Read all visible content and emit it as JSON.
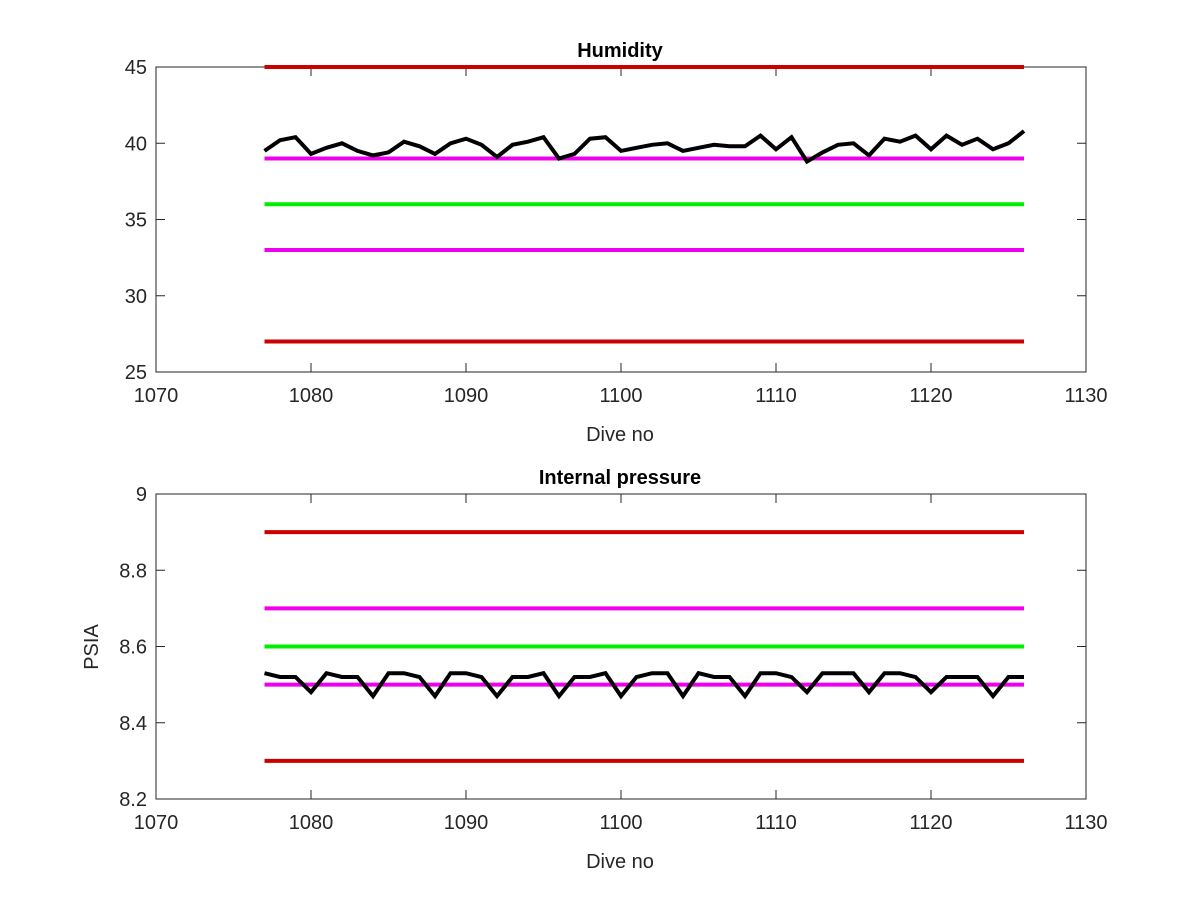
{
  "chart_data": [
    {
      "type": "line",
      "title": "Humidity",
      "xlabel": "Dive no",
      "ylabel": "",
      "xlim": [
        1070,
        1130
      ],
      "ylim": [
        25,
        45
      ],
      "xticks": [
        1070,
        1080,
        1090,
        1100,
        1110,
        1120,
        1130
      ],
      "yticks": [
        25,
        30,
        35,
        40,
        45
      ],
      "grid": false,
      "series": [
        {
          "color": "#000000",
          "x": [
            1077,
            1078,
            1079,
            1080,
            1081,
            1082,
            1083,
            1084,
            1085,
            1086,
            1087,
            1088,
            1089,
            1090,
            1091,
            1092,
            1093,
            1094,
            1095,
            1096,
            1097,
            1098,
            1099,
            1100,
            1101,
            1102,
            1103,
            1104,
            1105,
            1106,
            1107,
            1108,
            1109,
            1110,
            1111,
            1112,
            1113,
            1114,
            1115,
            1116,
            1117,
            1118,
            1119,
            1120,
            1121,
            1122,
            1123,
            1124,
            1125,
            1126
          ],
          "y": [
            39.5,
            40.2,
            40.4,
            39.3,
            39.7,
            40.0,
            39.5,
            39.2,
            39.4,
            40.1,
            39.8,
            39.3,
            40.0,
            40.3,
            39.9,
            39.1,
            39.9,
            40.1,
            40.4,
            39.0,
            39.3,
            40.3,
            40.4,
            39.5,
            39.7,
            39.9,
            40.0,
            39.5,
            39.7,
            39.9,
            39.8,
            39.8,
            40.5,
            39.6,
            40.4,
            38.8,
            39.4,
            39.9,
            40.0,
            39.2,
            40.3,
            40.1,
            40.5,
            39.6,
            40.5,
            39.9,
            40.3,
            39.6,
            40.0,
            40.8
          ]
        },
        {
          "color": "#cc0000",
          "x": [
            1077,
            1126
          ],
          "y": [
            45,
            45
          ]
        },
        {
          "color": "#ee00ee",
          "x": [
            1077,
            1126
          ],
          "y": [
            39,
            39
          ]
        },
        {
          "color": "#00ee00",
          "x": [
            1077,
            1126
          ],
          "y": [
            36,
            36
          ]
        },
        {
          "color": "#ee00ee",
          "x": [
            1077,
            1126
          ],
          "y": [
            33,
            33
          ]
        },
        {
          "color": "#cc0000",
          "x": [
            1077,
            1126
          ],
          "y": [
            27,
            27
          ]
        }
      ]
    },
    {
      "type": "line",
      "title": "Internal pressure",
      "xlabel": "Dive no",
      "ylabel": "PSIA",
      "xlim": [
        1070,
        1130
      ],
      "ylim": [
        8.2,
        9
      ],
      "xticks": [
        1070,
        1080,
        1090,
        1100,
        1110,
        1120,
        1130
      ],
      "yticks": [
        8.2,
        8.4,
        8.6,
        8.8,
        9
      ],
      "grid": false,
      "series": [
        {
          "color": "#000000",
          "x": [
            1077,
            1078,
            1079,
            1080,
            1081,
            1082,
            1083,
            1084,
            1085,
            1086,
            1087,
            1088,
            1089,
            1090,
            1091,
            1092,
            1093,
            1094,
            1095,
            1096,
            1097,
            1098,
            1099,
            1100,
            1101,
            1102,
            1103,
            1104,
            1105,
            1106,
            1107,
            1108,
            1109,
            1110,
            1111,
            1112,
            1113,
            1114,
            1115,
            1116,
            1117,
            1118,
            1119,
            1120,
            1121,
            1122,
            1123,
            1124,
            1125,
            1126
          ],
          "y": [
            8.53,
            8.52,
            8.52,
            8.48,
            8.53,
            8.52,
            8.52,
            8.47,
            8.53,
            8.53,
            8.52,
            8.47,
            8.53,
            8.53,
            8.52,
            8.47,
            8.52,
            8.52,
            8.53,
            8.47,
            8.52,
            8.52,
            8.53,
            8.47,
            8.52,
            8.53,
            8.53,
            8.47,
            8.53,
            8.52,
            8.52,
            8.47,
            8.53,
            8.53,
            8.52,
            8.48,
            8.53,
            8.53,
            8.53,
            8.48,
            8.53,
            8.53,
            8.52,
            8.48,
            8.52,
            8.52,
            8.52,
            8.47,
            8.52,
            8.52
          ]
        },
        {
          "color": "#cc0000",
          "x": [
            1077,
            1126
          ],
          "y": [
            8.9,
            8.9
          ]
        },
        {
          "color": "#ee00ee",
          "x": [
            1077,
            1126
          ],
          "y": [
            8.7,
            8.7
          ]
        },
        {
          "color": "#00ee00",
          "x": [
            1077,
            1126
          ],
          "y": [
            8.6,
            8.6
          ]
        },
        {
          "color": "#ee00ee",
          "x": [
            1077,
            1126
          ],
          "y": [
            8.5,
            8.5
          ]
        },
        {
          "color": "#cc0000",
          "x": [
            1077,
            1126
          ],
          "y": [
            8.3,
            8.3
          ]
        }
      ]
    }
  ]
}
